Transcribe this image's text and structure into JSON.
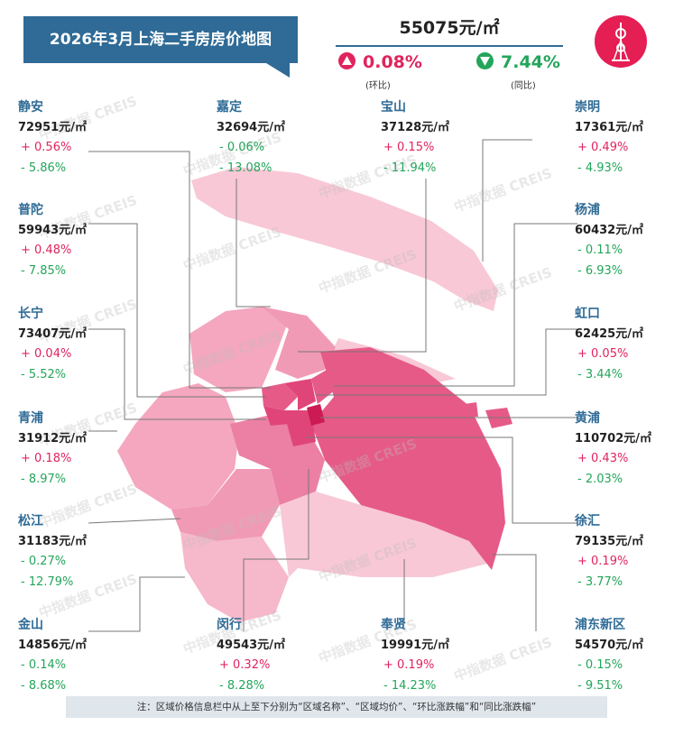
{
  "title": "2026年3月上海二手房房价地图",
  "overall": {
    "price": "55075元/㎡",
    "mom": "0.08%",
    "mom_label": "(环比)",
    "yoy": "7.44%",
    "yoy_label": "(同比)"
  },
  "watermark": "中指数据 CREIS",
  "colors": {
    "header": "#2f6b96",
    "up": "#e0245e",
    "down": "#23a55a",
    "logo": "#e51e54"
  },
  "districts": [
    {
      "name": "静安",
      "price": "72951元/㎡",
      "mom": "+ 0.56%",
      "yoy": "- 5.86%",
      "mom_dir": "up",
      "yoy_dir": "down"
    },
    {
      "name": "嘉定",
      "price": "32694元/㎡",
      "mom": "- 0.06%",
      "yoy": "- 13.08%",
      "mom_dir": "down",
      "yoy_dir": "down"
    },
    {
      "name": "宝山",
      "price": "37128元/㎡",
      "mom": "+ 0.15%",
      "yoy": "- 11.94%",
      "mom_dir": "up",
      "yoy_dir": "down"
    },
    {
      "name": "崇明",
      "price": "17361元/㎡",
      "mom": "+ 0.49%",
      "yoy": "- 4.93%",
      "mom_dir": "up",
      "yoy_dir": "down"
    },
    {
      "name": "普陀",
      "price": "59943元/㎡",
      "mom": "+ 0.48%",
      "yoy": "- 7.85%",
      "mom_dir": "up",
      "yoy_dir": "down"
    },
    {
      "name": "杨浦",
      "price": "60432元/㎡",
      "mom": "- 0.11%",
      "yoy": "- 6.93%",
      "mom_dir": "down",
      "yoy_dir": "down"
    },
    {
      "name": "长宁",
      "price": "73407元/㎡",
      "mom": "+ 0.04%",
      "yoy": "- 5.52%",
      "mom_dir": "up",
      "yoy_dir": "down"
    },
    {
      "name": "虹口",
      "price": "62425元/㎡",
      "mom": "+ 0.05%",
      "yoy": "- 3.44%",
      "mom_dir": "up",
      "yoy_dir": "down"
    },
    {
      "name": "青浦",
      "price": "31912元/㎡",
      "mom": "+ 0.18%",
      "yoy": "- 8.97%",
      "mom_dir": "up",
      "yoy_dir": "down"
    },
    {
      "name": "黄浦",
      "price": "110702元/㎡",
      "mom": "+ 0.43%",
      "yoy": "- 2.03%",
      "mom_dir": "up",
      "yoy_dir": "down"
    },
    {
      "name": "松江",
      "price": "31183元/㎡",
      "mom": "- 0.27%",
      "yoy": "- 12.79%",
      "mom_dir": "down",
      "yoy_dir": "down"
    },
    {
      "name": "徐汇",
      "price": "79135元/㎡",
      "mom": "+ 0.19%",
      "yoy": "- 3.77%",
      "mom_dir": "up",
      "yoy_dir": "down"
    },
    {
      "name": "金山",
      "price": "14856元/㎡",
      "mom": "- 0.14%",
      "yoy": "- 8.68%",
      "mom_dir": "down",
      "yoy_dir": "down"
    },
    {
      "name": "闵行",
      "price": "49543元/㎡",
      "mom": "+ 0.32%",
      "yoy": "- 8.28%",
      "mom_dir": "up",
      "yoy_dir": "down"
    },
    {
      "name": "奉贤",
      "price": "19991元/㎡",
      "mom": "+ 0.19%",
      "yoy": "- 14.23%",
      "mom_dir": "up",
      "yoy_dir": "down"
    },
    {
      "name": "浦东新区",
      "price": "54570元/㎡",
      "mom": "- 0.15%",
      "yoy": "- 9.51%",
      "mom_dir": "down",
      "yoy_dir": "down"
    }
  ],
  "note": "注：区域价格信息栏中从上至下分别为“区域名称”、“区域均价”、“环比涨跌幅”和“同比涨跌幅”"
}
